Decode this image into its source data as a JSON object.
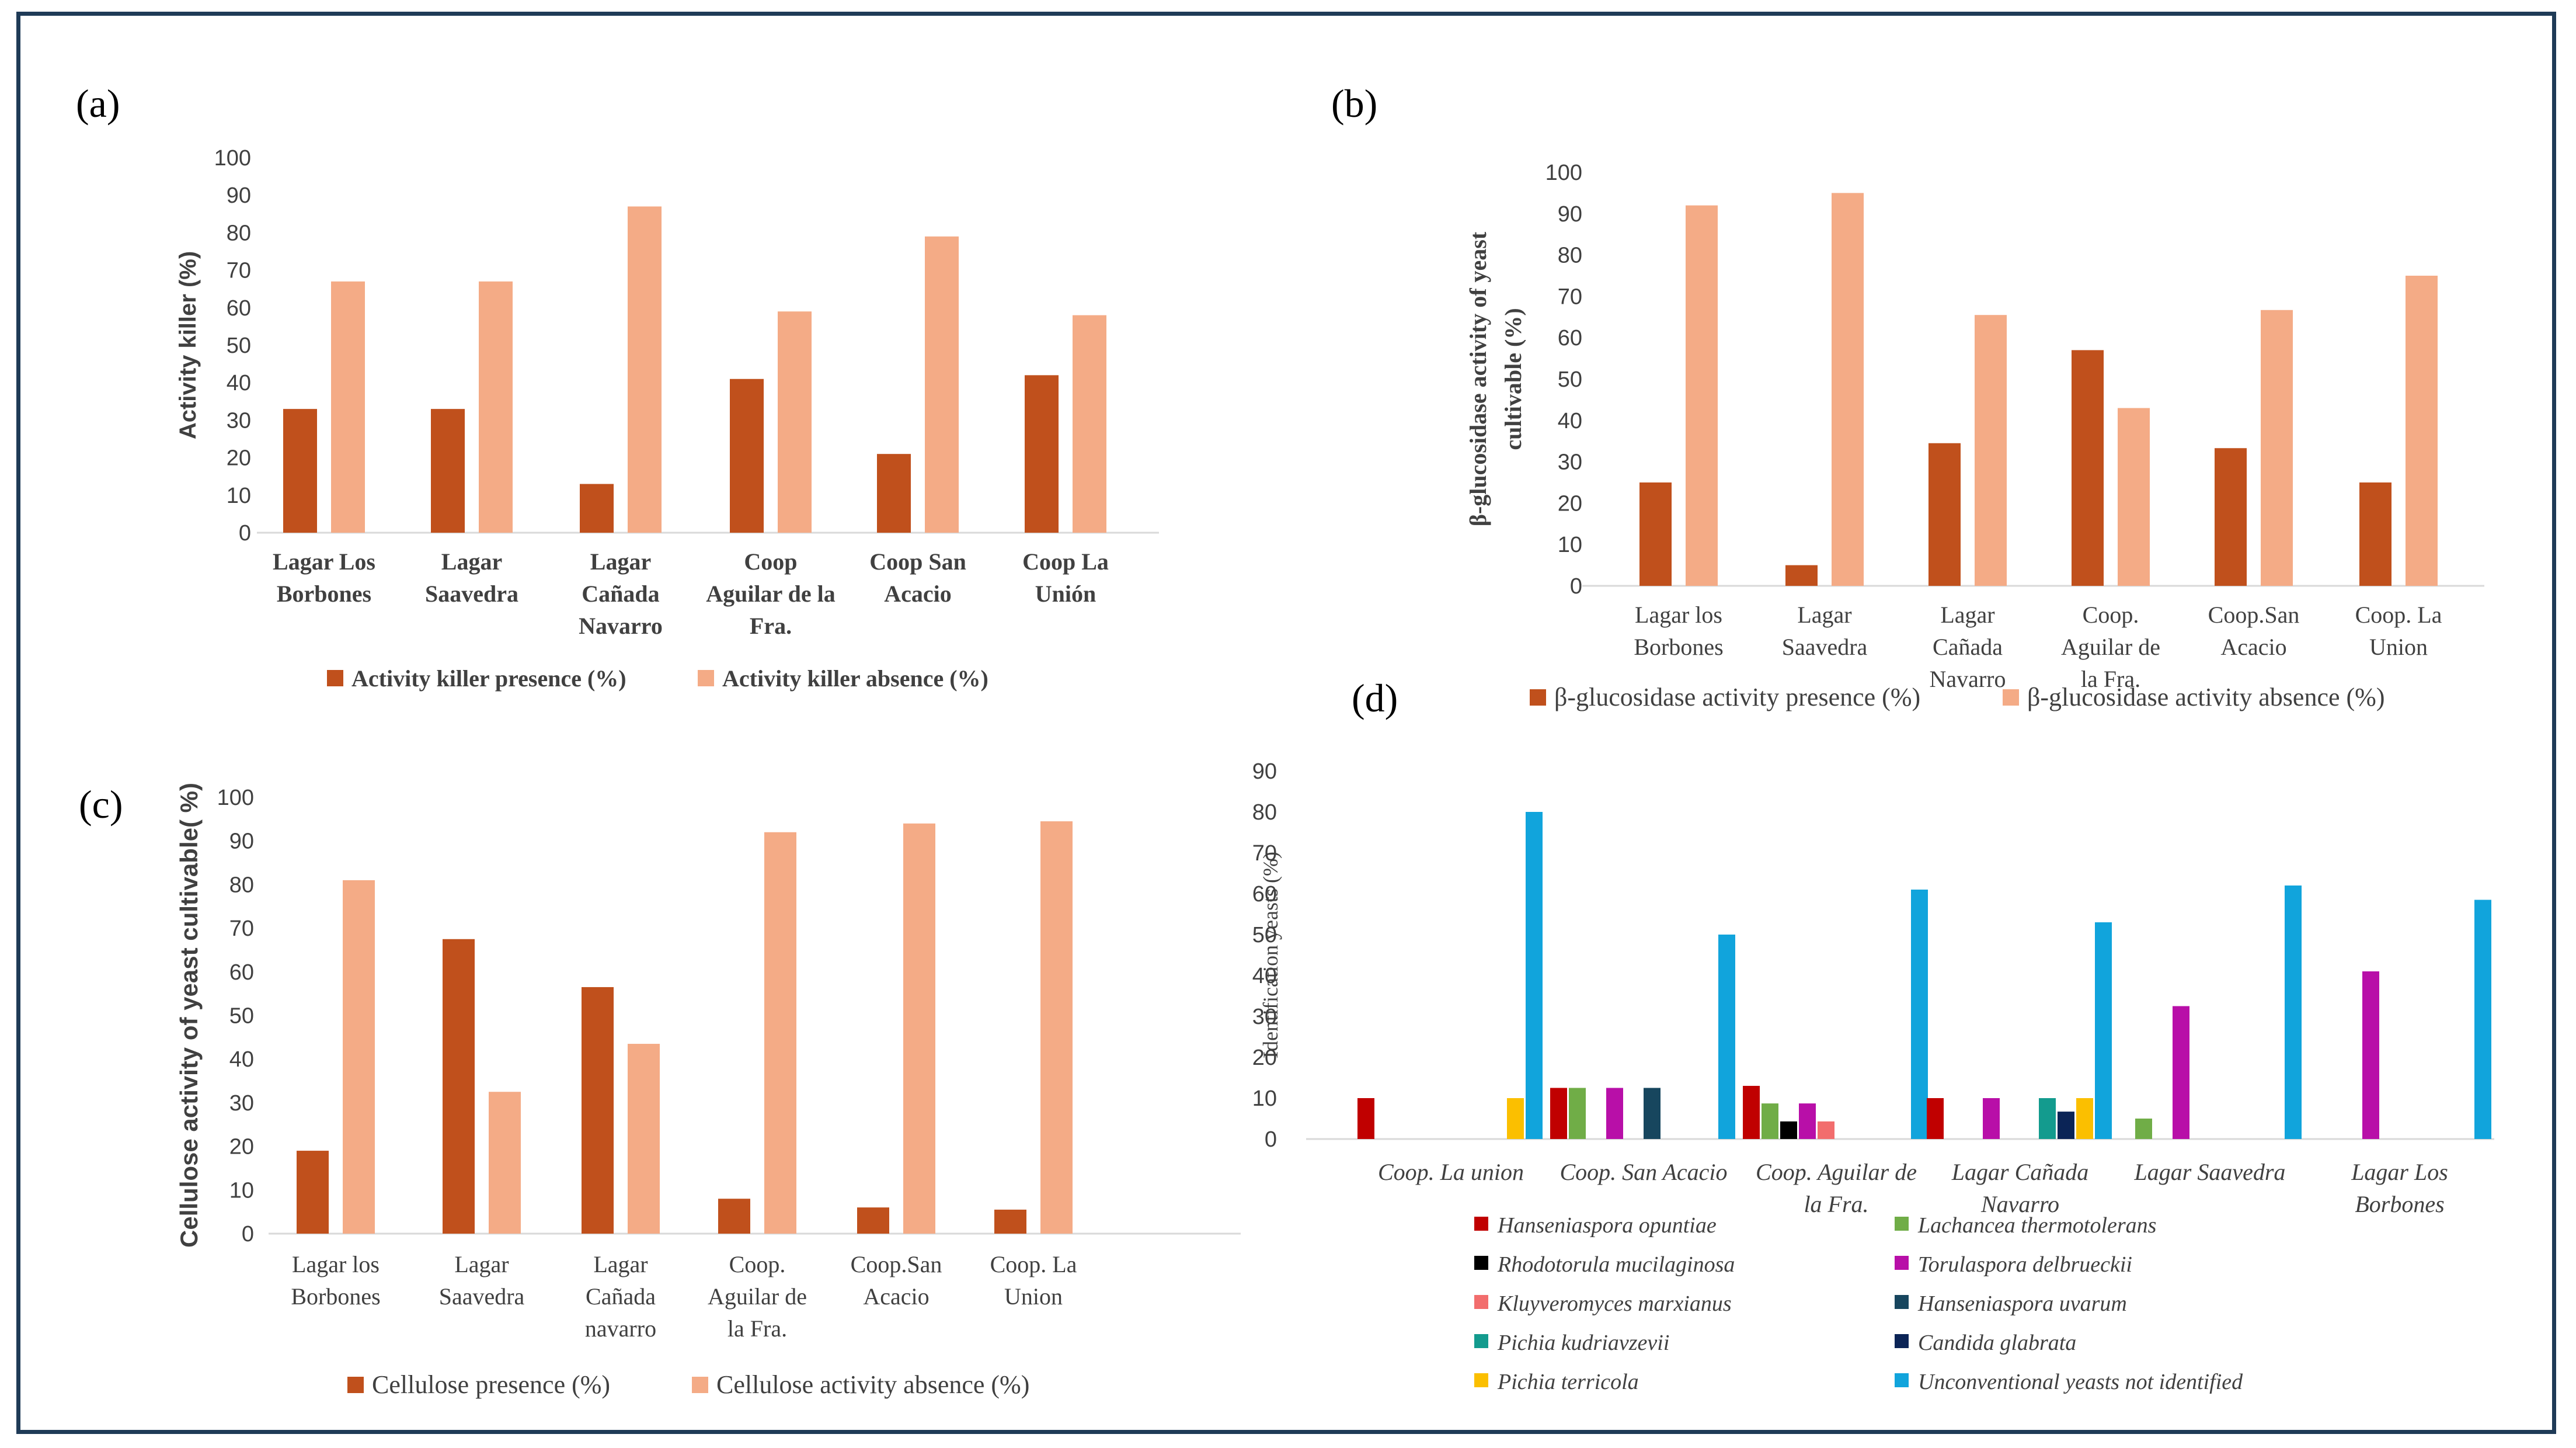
{
  "colors": {
    "presence": "#c0501c",
    "absence": "#f4ab86",
    "axis": "#d9d9d9",
    "text": "#404040",
    "frame": "#1f3b57"
  },
  "chart_data": [
    {
      "id": "a",
      "type": "bar",
      "panel_label": "(a)",
      "title": "",
      "ylabel": "Activity killer (%)",
      "ylim": [
        0,
        100
      ],
      "ytick_step": 10,
      "categories": [
        [
          "Lagar Los",
          "Borbones"
        ],
        [
          "Lagar",
          "Saavedra"
        ],
        [
          "Lagar",
          "Cañada",
          "Navarro"
        ],
        [
          "Coop",
          "Aguilar de la",
          "Fra."
        ],
        [
          "Coop San",
          "Acacio"
        ],
        [
          "Coop La",
          "Unión"
        ]
      ],
      "series": [
        {
          "name": "Activity killer presence (%)",
          "values": [
            33,
            33,
            13,
            41,
            21,
            42
          ]
        },
        {
          "name": "Activity killer absence (%)",
          "values": [
            67,
            67,
            87,
            59,
            79,
            58
          ]
        }
      ],
      "legend": "bottom"
    },
    {
      "id": "b",
      "type": "bar",
      "panel_label": "(b)",
      "title": "",
      "ylabel_lines": [
        "β-glucosidase activity of yeast",
        "cultivable (%)"
      ],
      "ylim": [
        0,
        100
      ],
      "ytick_step": 10,
      "categories": [
        [
          "Lagar los",
          "Borbones"
        ],
        [
          "Lagar",
          "Saavedra"
        ],
        [
          "Lagar",
          "Cañada",
          "Navarro"
        ],
        [
          "Coop.",
          "Aguilar  de",
          "la Fra."
        ],
        [
          "Coop.San",
          "Acacio"
        ],
        [
          "Coop. La",
          "Union"
        ]
      ],
      "series": [
        {
          "name": "β-glucosidase activity presence (%)",
          "values": [
            25,
            5,
            34.5,
            57,
            33.3,
            25
          ]
        },
        {
          "name": "β-glucosidase activity  absence (%)",
          "values": [
            92,
            95,
            65.5,
            43,
            66.7,
            75
          ]
        }
      ],
      "legend": "bottom"
    },
    {
      "id": "c",
      "type": "bar",
      "panel_label": "(c)",
      "title": "",
      "ylabel": "Cellulose  activity of yeast cultivable( %)",
      "ylim": [
        0,
        100
      ],
      "ytick_step": 10,
      "categories": [
        [
          "Lagar los",
          "Borbones"
        ],
        [
          "Lagar",
          "Saavedra"
        ],
        [
          "Lagar",
          "Cañada",
          "navarro"
        ],
        [
          "Coop.",
          "Aguilar  de",
          "la Fra."
        ],
        [
          "Coop.San",
          "Acacio"
        ],
        [
          "Coop. La",
          "Union"
        ]
      ],
      "series": [
        {
          "name": "Cellulose presence (%)",
          "values": [
            19,
            67.5,
            56.5,
            8,
            6,
            5.5
          ]
        },
        {
          "name": "Cellulose activity  absence (%)",
          "values": [
            81,
            32.5,
            43.5,
            92,
            94,
            94.5
          ]
        }
      ],
      "legend": "bottom"
    },
    {
      "id": "d",
      "type": "bar",
      "panel_label": "(d)",
      "title": "",
      "ylabel": "Identification  yeasts (%)",
      "ylim": [
        0,
        90
      ],
      "ytick_step": 10,
      "categories": [
        [
          "Coop. La union"
        ],
        [
          "Coop. San Acacio"
        ],
        [
          "Coop. Aguilar de",
          "la Fra."
        ],
        [
          "Lagar Cañada",
          "Navarro"
        ],
        [
          "Lagar Saavedra"
        ],
        [
          "Lagar Los",
          "Borbones"
        ]
      ],
      "series": [
        {
          "name": "Hanseniaspora opuntiae",
          "color": "#c00000",
          "values": [
            10,
            12.5,
            13,
            10,
            0,
            0
          ]
        },
        {
          "name": "Lachancea thermotolerans",
          "color": "#70ad47",
          "values": [
            0,
            12.5,
            8.7,
            0,
            5,
            0
          ]
        },
        {
          "name": "Rhodotorula mucilaginosa",
          "color": "#000000",
          "values": [
            0,
            0,
            4.3,
            0,
            0,
            0
          ]
        },
        {
          "name": "Torulaspora delbrueckii",
          "color": "#b80fa8",
          "values": [
            0,
            12.5,
            8.7,
            10,
            32.5,
            41
          ]
        },
        {
          "name": "Kluyveromyces marxianus",
          "color": "#f26d6d",
          "values": [
            0,
            0,
            4.3,
            0,
            0,
            0
          ]
        },
        {
          "name": "Hanseniaspora uvarum",
          "color": "#17465e",
          "values": [
            0,
            12.5,
            0,
            0,
            0,
            0
          ]
        },
        {
          "name": "Pichia kudriavzevii",
          "color": "#139b8e",
          "values": [
            0,
            0,
            0,
            10,
            0,
            0
          ]
        },
        {
          "name": "Candida glabrata",
          "color": "#0b2456",
          "values": [
            0,
            0,
            0,
            6.7,
            0,
            0
          ]
        },
        {
          "name": "Pichia terricola",
          "color": "#fbbf00",
          "values": [
            10,
            0,
            0,
            10,
            0,
            0
          ]
        },
        {
          "name": "Unconventional yeasts not identified",
          "color": "#11a4dc",
          "values": [
            80,
            50,
            61,
            53,
            62,
            58.5
          ]
        }
      ],
      "legend": "bottom"
    }
  ]
}
